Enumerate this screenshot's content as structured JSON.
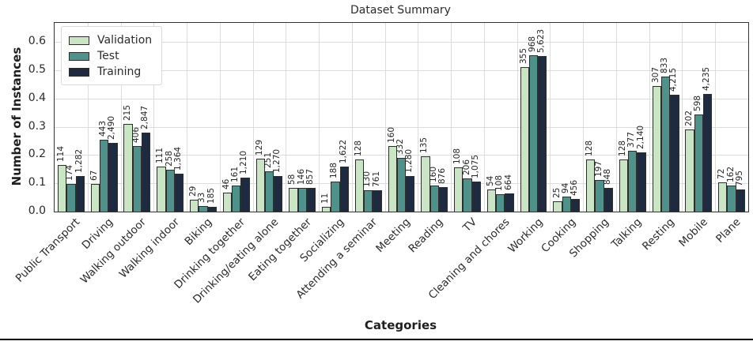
{
  "chart_data": {
    "type": "bar",
    "title": "Dataset Summary",
    "xlabel": "Categories",
    "ylabel": "Number of Instances",
    "ylim": [
      0,
      0.667
    ],
    "yticks": [
      "0.0",
      "0.1",
      "0.2",
      "0.3",
      "0.4",
      "0.5",
      "0.6"
    ],
    "grid": "both",
    "legend_position": "upper-left",
    "categories": [
      "Public Transport",
      "Driving",
      "Walking outdoor",
      "Walking indoor",
      "Biking",
      "Drinking together",
      "Drinking/eating alone",
      "Eating together",
      "Socializing",
      "Attending a seminar",
      "Meeting",
      "Reading",
      "TV",
      "Cleaning and chores",
      "Working",
      "Cooking",
      "Shopping",
      "Talking",
      "Resting",
      "Mobile",
      "Plane"
    ],
    "series": [
      {
        "name": "Validation",
        "color": "#c9e5c4",
        "counts": [
          114,
          67,
          215,
          111,
          29,
          46,
          129,
          58,
          11,
          128,
          160,
          135,
          108,
          54,
          355,
          25,
          128,
          128,
          307,
          202,
          72
        ],
        "labels": [
          "114",
          "67",
          "215",
          "111",
          "29",
          "46",
          "129",
          "58",
          "11",
          "128",
          "160",
          "135",
          "108",
          "54",
          "355",
          "25",
          "128",
          "128",
          "307",
          "202",
          "72"
        ],
        "heights": [
          0.164,
          0.097,
          0.31,
          0.16,
          0.042,
          0.066,
          0.186,
          0.084,
          0.016,
          0.185,
          0.231,
          0.195,
          0.156,
          0.078,
          0.512,
          0.036,
          0.185,
          0.185,
          0.443,
          0.291,
          0.104
        ]
      },
      {
        "name": "Test",
        "color": "#4f918b",
        "counts": [
          174,
          443,
          406,
          258,
          33,
          161,
          251,
          146,
          188,
          130,
          332,
          160,
          206,
          108,
          968,
          94,
          197,
          377,
          833,
          598,
          162
        ],
        "labels": [
          "174",
          "443",
          "406",
          "258",
          "33",
          "161",
          "251",
          "146",
          "188",
          "130",
          "332",
          "160",
          "206",
          "108",
          "968",
          "94",
          "197",
          "377",
          "833",
          "598",
          "162"
        ],
        "heights": [
          0.099,
          0.253,
          0.232,
          0.147,
          0.019,
          0.092,
          0.143,
          0.083,
          0.107,
          0.074,
          0.19,
          0.091,
          0.118,
          0.062,
          0.553,
          0.054,
          0.113,
          0.215,
          0.476,
          0.342,
          0.093
        ]
      },
      {
        "name": "Training",
        "color": "#1d2a40",
        "counts": [
          1282,
          2490,
          2847,
          1364,
          185,
          1210,
          1270,
          857,
          1622,
          761,
          1280,
          876,
          1075,
          664,
          5623,
          456,
          848,
          2140,
          4215,
          4235,
          795
        ],
        "labels": [
          "1,282",
          "2,490",
          "2,847",
          "1,364",
          "185",
          "1,210",
          "1,270",
          "857",
          "1,622",
          "761",
          "1,280",
          "876",
          "1,075",
          "664",
          "5,623",
          "456",
          "848",
          "2,140",
          "4,215",
          "4,235",
          "795"
        ],
        "heights": [
          0.126,
          0.244,
          0.279,
          0.134,
          0.018,
          0.119,
          0.125,
          0.084,
          0.159,
          0.075,
          0.125,
          0.086,
          0.105,
          0.065,
          0.551,
          0.045,
          0.083,
          0.21,
          0.413,
          0.415,
          0.078
        ]
      }
    ],
    "colors": {
      "grid": "#dcdcdc",
      "frame": "#333333",
      "bar_edge": "#2d2d2d",
      "text": "#2b2b2b",
      "bottom_rule": "#000000"
    }
  }
}
